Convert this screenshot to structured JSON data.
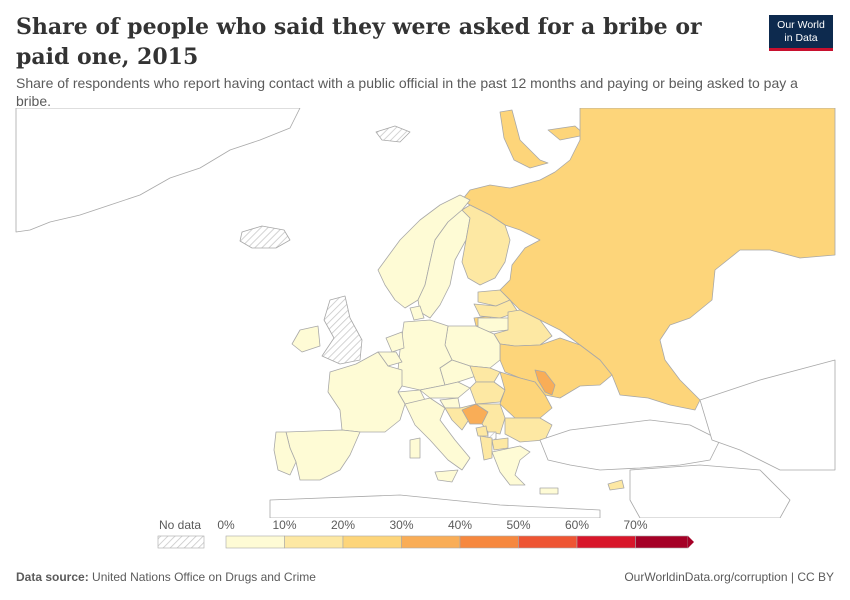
{
  "header": {
    "title": "Share of people who said they were asked for a bribe or paid one, 2015",
    "subtitle": "Share of respondents who report having contact with a public official in the past 12 months and paying or being asked to pay a bribe.",
    "logo_line1": "Our World",
    "logo_line2": "in Data"
  },
  "legend": {
    "no_data_label": "No data",
    "bins": [
      {
        "label": "0%",
        "color": "#fefbd5"
      },
      {
        "label": "10%",
        "color": "#fde8a3"
      },
      {
        "label": "20%",
        "color": "#fdd57a"
      },
      {
        "label": "30%",
        "color": "#f9ad57"
      },
      {
        "label": "40%",
        "color": "#f6883f"
      },
      {
        "label": "50%",
        "color": "#ee5533"
      },
      {
        "label": "60%",
        "color": "#d8162a"
      },
      {
        "label": "70%",
        "color": "#a50026"
      }
    ]
  },
  "colors": {
    "no_data": "#ffffff",
    "border": "#a8a8a8",
    "bin_0_10": "#fefbd5",
    "bin_10_20": "#fde8a3",
    "bin_20_30": "#fdd57a",
    "bin_30_40": "#f9ad57"
  },
  "footer": {
    "source_label": "Data source:",
    "source_text": "United Nations Office on Drugs and Crime",
    "right_text": "OurWorldinData.org/corruption | CC BY"
  }
}
